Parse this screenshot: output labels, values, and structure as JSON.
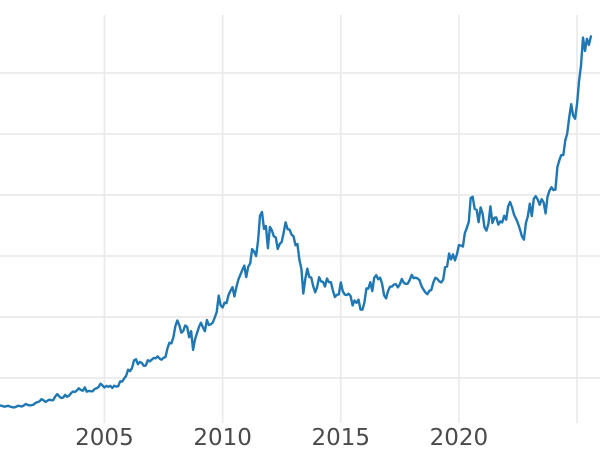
{
  "page": {
    "background": "#ffffff"
  },
  "chart_data": {
    "type": "line",
    "title": "",
    "xlabel": "",
    "ylabel": "",
    "legend": "none",
    "grid": {
      "on": true,
      "color": "#eaeaea"
    },
    "x_axis": {
      "xlim": [
        2000.58,
        2025.97
      ],
      "tick_years": [
        2005,
        2010,
        2015,
        2020
      ],
      "gridline_years": [
        2005,
        2010,
        2015,
        2020,
        2025
      ],
      "tick_label_color": "#4a4a4a"
    },
    "y_axis": {
      "labels_visible": false,
      "ylim_visible": [
        131,
        3475
      ],
      "gridline_values": [
        500,
        1000,
        1500,
        2000,
        2500,
        3000
      ]
    },
    "series": [
      {
        "name": "price",
        "color": "#1f77b4",
        "start_year": 2000.5833,
        "step_years": 0.0833333,
        "values": [
          274,
          272,
          265,
          268,
          272,
          266,
          261,
          258,
          263,
          272,
          270,
          266,
          274,
          287,
          280,
          275,
          277,
          282,
          296,
          302,
          308,
          326,
          319,
          304,
          312,
          323,
          317,
          319,
          347,
          368,
          350,
          336,
          339,
          361,
          346,
          355,
          375,
          388,
          385,
          398,
          415,
          402,
          396,
          423,
          388,
          394,
          392,
          391,
          410,
          415,
          425,
          453,
          438,
          422,
          435,
          428,
          435,
          418,
          437,
          429,
          433,
          473,
          470,
          495,
          517,
          568,
          556,
          582,
          644,
          653,
          613,
          632,
          623,
          599,
          603,
          646,
          636,
          650,
          664,
          661,
          677,
          659,
          650,
          665,
          672,
          743,
          789,
          783,
          833,
          923,
          971,
          933,
          871,
          885,
          930,
          918,
          833,
          884,
          730,
          816,
          869,
          919,
          952,
          916,
          883,
          975,
          934,
          939,
          955,
          995,
          1040,
          1175,
          1096,
          1078,
          1118,
          1113,
          1179,
          1215,
          1244,
          1169,
          1246,
          1307,
          1346,
          1385,
          1421,
          1327,
          1411,
          1439,
          1556,
          1536,
          1500,
          1628,
          1830,
          1860,
          1722,
          1746,
          1564,
          1738,
          1711,
          1662,
          1651,
          1558,
          1598,
          1615,
          1692,
          1776,
          1720,
          1715,
          1675,
          1661,
          1588,
          1598,
          1469,
          1394,
          1192,
          1313,
          1396,
          1327,
          1324,
          1253,
          1202,
          1244,
          1326,
          1291,
          1288,
          1250,
          1315,
          1285,
          1285,
          1216,
          1164,
          1182,
          1184,
          1283,
          1213,
          1183,
          1180,
          1191,
          1171,
          1095,
          1135,
          1115,
          1142,
          1061,
          1060,
          1118,
          1234,
          1232,
          1285,
          1212,
          1322,
          1342,
          1309,
          1322,
          1272,
          1178,
          1152,
          1212,
          1248,
          1249,
          1266,
          1269,
          1242,
          1267,
          1311,
          1280,
          1271,
          1273,
          1303,
          1345,
          1318,
          1323,
          1315,
          1301,
          1253,
          1224,
          1201,
          1187,
          1215,
          1220,
          1282,
          1321,
          1313,
          1292,
          1283,
          1306,
          1409,
          1414,
          1520,
          1472,
          1513,
          1464,
          1517,
          1589,
          1586,
          1577,
          1686,
          1730,
          1781,
          1976,
          1985,
          1886,
          1879,
          1777,
          1898,
          1848,
          1734,
          1708,
          1768,
          1907,
          1770,
          1814,
          1815,
          1757,
          1783,
          1775,
          1829,
          1797,
          1909,
          1942,
          1897,
          1837,
          1807,
          1766,
          1716,
          1661,
          1634,
          1769,
          1824,
          1928,
          1827,
          1969,
          1990,
          1963,
          1919,
          1965,
          1940,
          1849,
          1984,
          2036,
          2063,
          2040,
          2044,
          2230,
          2286,
          2327,
          2327,
          2448,
          2503,
          2635,
          2744,
          2651,
          2625,
          2750,
          2930,
          3060,
          3290,
          3180,
          3280,
          3230,
          3300
        ]
      }
    ]
  }
}
